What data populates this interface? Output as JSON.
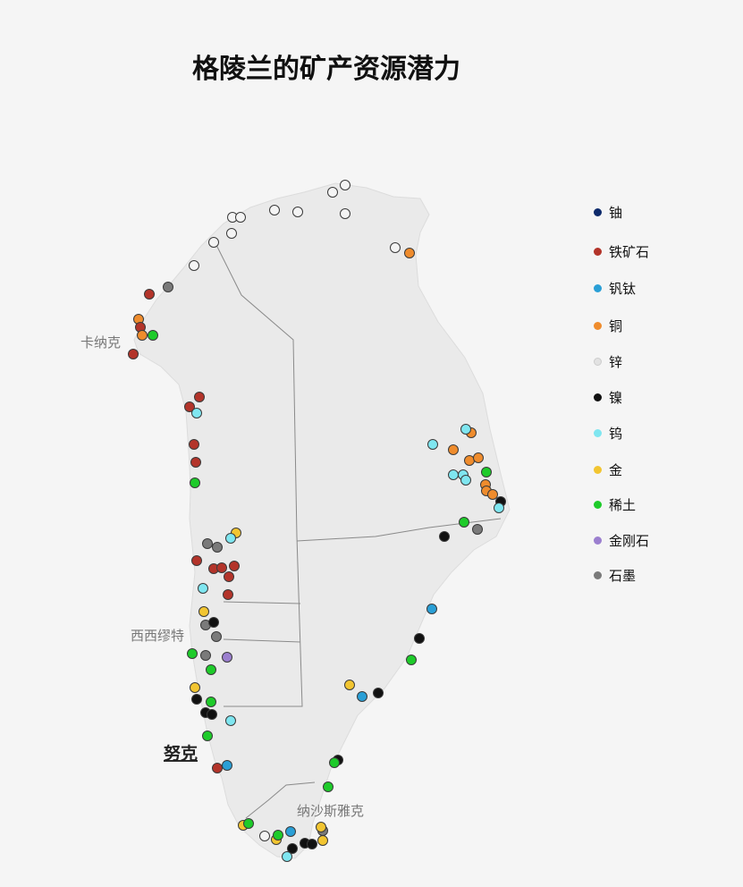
{
  "title": "格陵兰的矿产资源潜力",
  "colors": {
    "background": "#f5f5f5",
    "land": "#eaeaea",
    "border": "#888888"
  },
  "legend": [
    {
      "key": "uranium",
      "label": "铀",
      "color": "#0d2a6b"
    },
    {
      "key": "iron",
      "label": "铁矿石",
      "color": "#b3342a"
    },
    {
      "key": "vanadium_titanium",
      "label": "钒钛",
      "color": "#2a9fd6"
    },
    {
      "key": "copper",
      "label": "铜",
      "color": "#ef8c2d"
    },
    {
      "key": "zinc",
      "label": "锌",
      "color": "#e2e2e2"
    },
    {
      "key": "nickel",
      "label": "镍",
      "color": "#111111"
    },
    {
      "key": "tungsten",
      "label": "钨",
      "color": "#7fe6f0"
    },
    {
      "key": "gold",
      "label": "金",
      "color": "#f2c531"
    },
    {
      "key": "rare_earth",
      "label": "稀土",
      "color": "#1ecb2a"
    },
    {
      "key": "diamond",
      "label": "金刚石",
      "color": "#9b7fcf"
    },
    {
      "key": "graphite",
      "label": "石墨",
      "color": "#7a7a7a"
    }
  ],
  "cities": [
    {
      "name": "卡纳克",
      "capital": false
    },
    {
      "name": "西西缪特",
      "capital": false
    },
    {
      "name": "努克",
      "capital": true
    },
    {
      "name": "纳沙斯雅克",
      "capital": false
    }
  ]
}
